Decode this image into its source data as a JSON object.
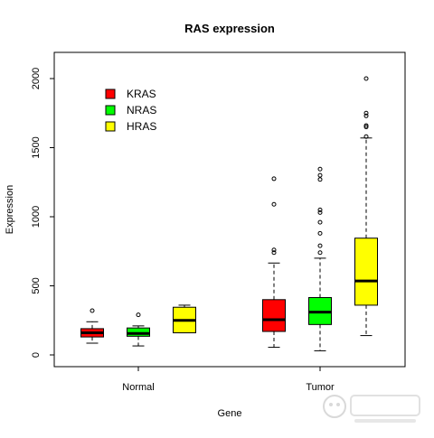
{
  "chart_data": {
    "type": "boxplot",
    "title": "RAS expression",
    "xlabel": "Gene",
    "ylabel": "Expression",
    "ylim": [
      -80,
      2200
    ],
    "y_ticks": [
      0,
      500,
      1000,
      1500,
      2000
    ],
    "categories": [
      "Normal",
      "Tumor"
    ],
    "legend": {
      "position": "top-left",
      "entries": [
        {
          "name": "KRAS",
          "color": "#ff0000"
        },
        {
          "name": "NRAS",
          "color": "#00ff00"
        },
        {
          "name": "HRAS",
          "color": "#ffff00"
        }
      ]
    },
    "series": [
      {
        "name": "KRAS",
        "color": "#ff0000",
        "boxes": [
          {
            "category": "Normal",
            "whisker_low": 85,
            "q1": 130,
            "median": 160,
            "q3": 190,
            "whisker_high": 240,
            "outliers": [
              320
            ]
          },
          {
            "category": "Tumor",
            "whisker_low": 55,
            "q1": 170,
            "median": 255,
            "q3": 400,
            "whisker_high": 665,
            "outliers": [
              740,
              760,
              1090,
              1275
            ]
          }
        ]
      },
      {
        "name": "NRAS",
        "color": "#00ff00",
        "boxes": [
          {
            "category": "Normal",
            "whisker_low": 65,
            "q1": 135,
            "median": 155,
            "q3": 195,
            "whisker_high": 210,
            "outliers": [
              290
            ]
          },
          {
            "category": "Tumor",
            "whisker_low": 30,
            "q1": 220,
            "median": 310,
            "q3": 415,
            "whisker_high": 700,
            "outliers": [
              740,
              790,
              880,
              960,
              1030,
              1050,
              1270,
              1300,
              1345
            ]
          }
        ]
      },
      {
        "name": "HRAS",
        "color": "#ffff00",
        "boxes": [
          {
            "category": "Normal",
            "whisker_low": 160,
            "q1": 160,
            "median": 250,
            "q3": 345,
            "whisker_high": 360,
            "outliers": []
          },
          {
            "category": "Tumor",
            "whisker_low": 140,
            "q1": 360,
            "median": 535,
            "q3": 845,
            "whisker_high": 1570,
            "outliers": [
              1580,
              1650,
              1660,
              1730,
              1750,
              2000
            ]
          }
        ]
      }
    ]
  }
}
